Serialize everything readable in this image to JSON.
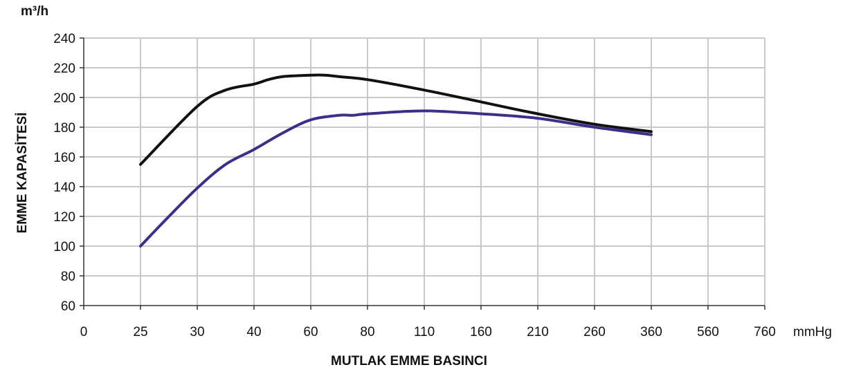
{
  "chart_data": {
    "type": "line",
    "title": "",
    "xlabel": "MUTLAK EMME BASINCI",
    "x_unit": "mmHg",
    "ylabel": "EMME KAPASİTESİ",
    "y_unit": "m³/h",
    "categories": [
      "0",
      "25",
      "30",
      "40",
      "60",
      "80",
      "110",
      "160",
      "210",
      "260",
      "360",
      "560",
      "760"
    ],
    "ylim": [
      60,
      240
    ],
    "yticks": [
      60,
      80,
      100,
      120,
      140,
      160,
      180,
      200,
      220,
      240
    ],
    "grid": true,
    "legend": "none",
    "series": [
      {
        "color": "#111111",
        "x": [
          25,
          30,
          35,
          40,
          45,
          50,
          60,
          65,
          70,
          80,
          110,
          160,
          210,
          260,
          360
        ],
        "y": [
          155,
          194,
          205,
          209,
          212,
          214,
          215,
          215,
          214,
          212,
          205,
          197,
          189,
          182,
          177
        ]
      },
      {
        "color": "#3a2f8a",
        "x": [
          25,
          27,
          30,
          35,
          40,
          50,
          60,
          70,
          75,
          80,
          110,
          160,
          210,
          260,
          360
        ],
        "y": [
          100,
          116,
          139,
          155,
          165,
          176,
          185,
          188,
          188,
          189,
          191,
          189,
          186,
          180,
          175
        ]
      }
    ]
  }
}
